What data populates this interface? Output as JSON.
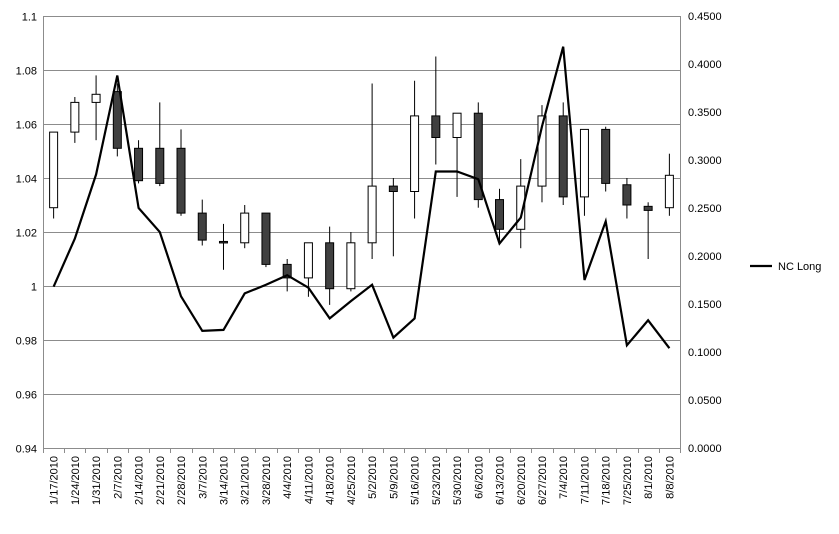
{
  "chart_data": {
    "type": "candlestick",
    "categories": [
      "1/17/2010",
      "1/24/2010",
      "1/31/2010",
      "2/7/2010",
      "2/14/2010",
      "2/21/2010",
      "2/28/2010",
      "3/7/2010",
      "3/14/2010",
      "3/21/2010",
      "3/28/2010",
      "4/4/2010",
      "4/11/2010",
      "4/18/2010",
      "4/25/2010",
      "5/2/2010",
      "5/9/2010",
      "5/16/2010",
      "5/23/2010",
      "5/30/2010",
      "6/6/2010",
      "6/13/2010",
      "6/20/2010",
      "6/27/2010",
      "7/4/2010",
      "7/11/2010",
      "7/18/2010",
      "7/25/2010",
      "8/1/2010",
      "8/8/2010"
    ],
    "candles": {
      "open": [
        1.029,
        1.057,
        1.068,
        1.072,
        1.051,
        1.051,
        1.051,
        1.027,
        1.0165,
        1.016,
        1.027,
        1.008,
        1.003,
        1.016,
        0.999,
        1.016,
        1.037,
        1.035,
        1.063,
        1.055,
        1.064,
        1.032,
        1.021,
        1.037,
        1.063,
        1.033,
        1.058,
        1.0375,
        1.0295,
        1.029
      ],
      "close": [
        1.057,
        1.068,
        1.071,
        1.051,
        1.039,
        1.038,
        1.027,
        1.017,
        1.016,
        1.027,
        1.008,
        1.003,
        1.016,
        0.999,
        1.016,
        1.037,
        1.035,
        1.063,
        1.055,
        1.064,
        1.032,
        1.021,
        1.037,
        1.063,
        1.033,
        1.058,
        1.038,
        1.03,
        1.028,
        1.041
      ],
      "high": [
        1.057,
        1.07,
        1.078,
        1.075,
        1.054,
        1.068,
        1.058,
        1.032,
        1.023,
        1.03,
        1.027,
        1.01,
        1.016,
        1.022,
        1.02,
        1.075,
        1.04,
        1.076,
        1.085,
        1.064,
        1.068,
        1.036,
        1.047,
        1.067,
        1.068,
        1.058,
        1.059,
        1.04,
        1.031,
        1.049
      ],
      "low": [
        1.025,
        1.053,
        1.054,
        1.048,
        1.038,
        1.037,
        1.026,
        1.015,
        1.006,
        1.014,
        1.007,
        0.998,
        0.996,
        0.993,
        0.998,
        1.01,
        1.011,
        1.025,
        1.045,
        1.033,
        1.029,
        1.016,
        1.014,
        1.031,
        1.03,
        1.026,
        1.035,
        1.025,
        1.01,
        1.026
      ]
    },
    "series": [
      {
        "name": "NC Long",
        "axis": "right",
        "type": "line",
        "values": [
          0.168,
          0.218,
          0.285,
          0.388,
          0.25,
          0.225,
          0.158,
          0.122,
          0.123,
          0.161,
          0.17,
          0.18,
          0.167,
          0.135,
          0.153,
          0.17,
          0.115,
          0.135,
          0.288,
          0.288,
          0.28,
          0.213,
          0.24,
          0.335,
          0.418,
          0.175,
          0.236,
          0.107,
          0.133,
          0.104
        ]
      }
    ],
    "yleft": {
      "min": 0.94,
      "max": 1.1,
      "step": 0.02,
      "ticks": [
        "0.94",
        "0.96",
        "0.98",
        "1",
        "1.02",
        "1.04",
        "1.06",
        "1.08",
        "1.1"
      ]
    },
    "yright": {
      "min": 0.0,
      "max": 0.45,
      "step": 0.05,
      "ticks": [
        "0.0000",
        "0.0500",
        "0.1000",
        "0.1500",
        "0.2000",
        "0.2500",
        "0.3000",
        "0.3500",
        "0.4000",
        "0.4500"
      ]
    },
    "grid": true,
    "legend": "right",
    "colors": {
      "up": "#ffffff",
      "down": "#404040",
      "line": "#000000",
      "grid": "#8c8c8c"
    }
  }
}
